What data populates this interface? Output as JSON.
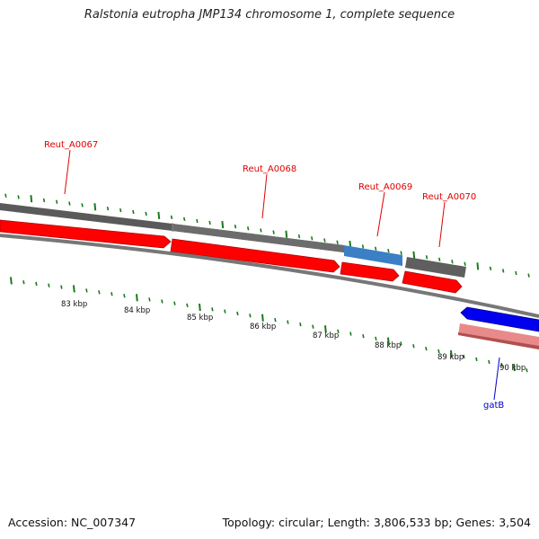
{
  "title": "Ralstonia eutropha JMP134 chromosome 1, complete sequence",
  "footer": {
    "accession": "Accession: NC_007347",
    "summary": "Topology: circular; Length: 3,806,533 bp; Genes: 3,504"
  },
  "scale_labels": [
    "83 kbp",
    "84 kbp",
    "85 kbp",
    "86 kbp",
    "87 kbp",
    "88 kbp",
    "89 kbp",
    "90 kbp"
  ],
  "gene_labels": {
    "reut_a0067": "Reut_A0067",
    "reut_a0068": "Reut_A0068",
    "reut_a0069": "Reut_A0069",
    "reut_a0070": "Reut_A0070",
    "gatb": "gatB"
  },
  "colors": {
    "cds_forward": "#ff0000",
    "cds_reverse": "#0000ff",
    "gene_gray": "#666666",
    "gene_highlight": "#3b7fc4",
    "rna_pink": "#e87a7a",
    "tick_green": "#1a7a1a",
    "label_red": "#e00000",
    "label_blue": "#0000cc"
  }
}
